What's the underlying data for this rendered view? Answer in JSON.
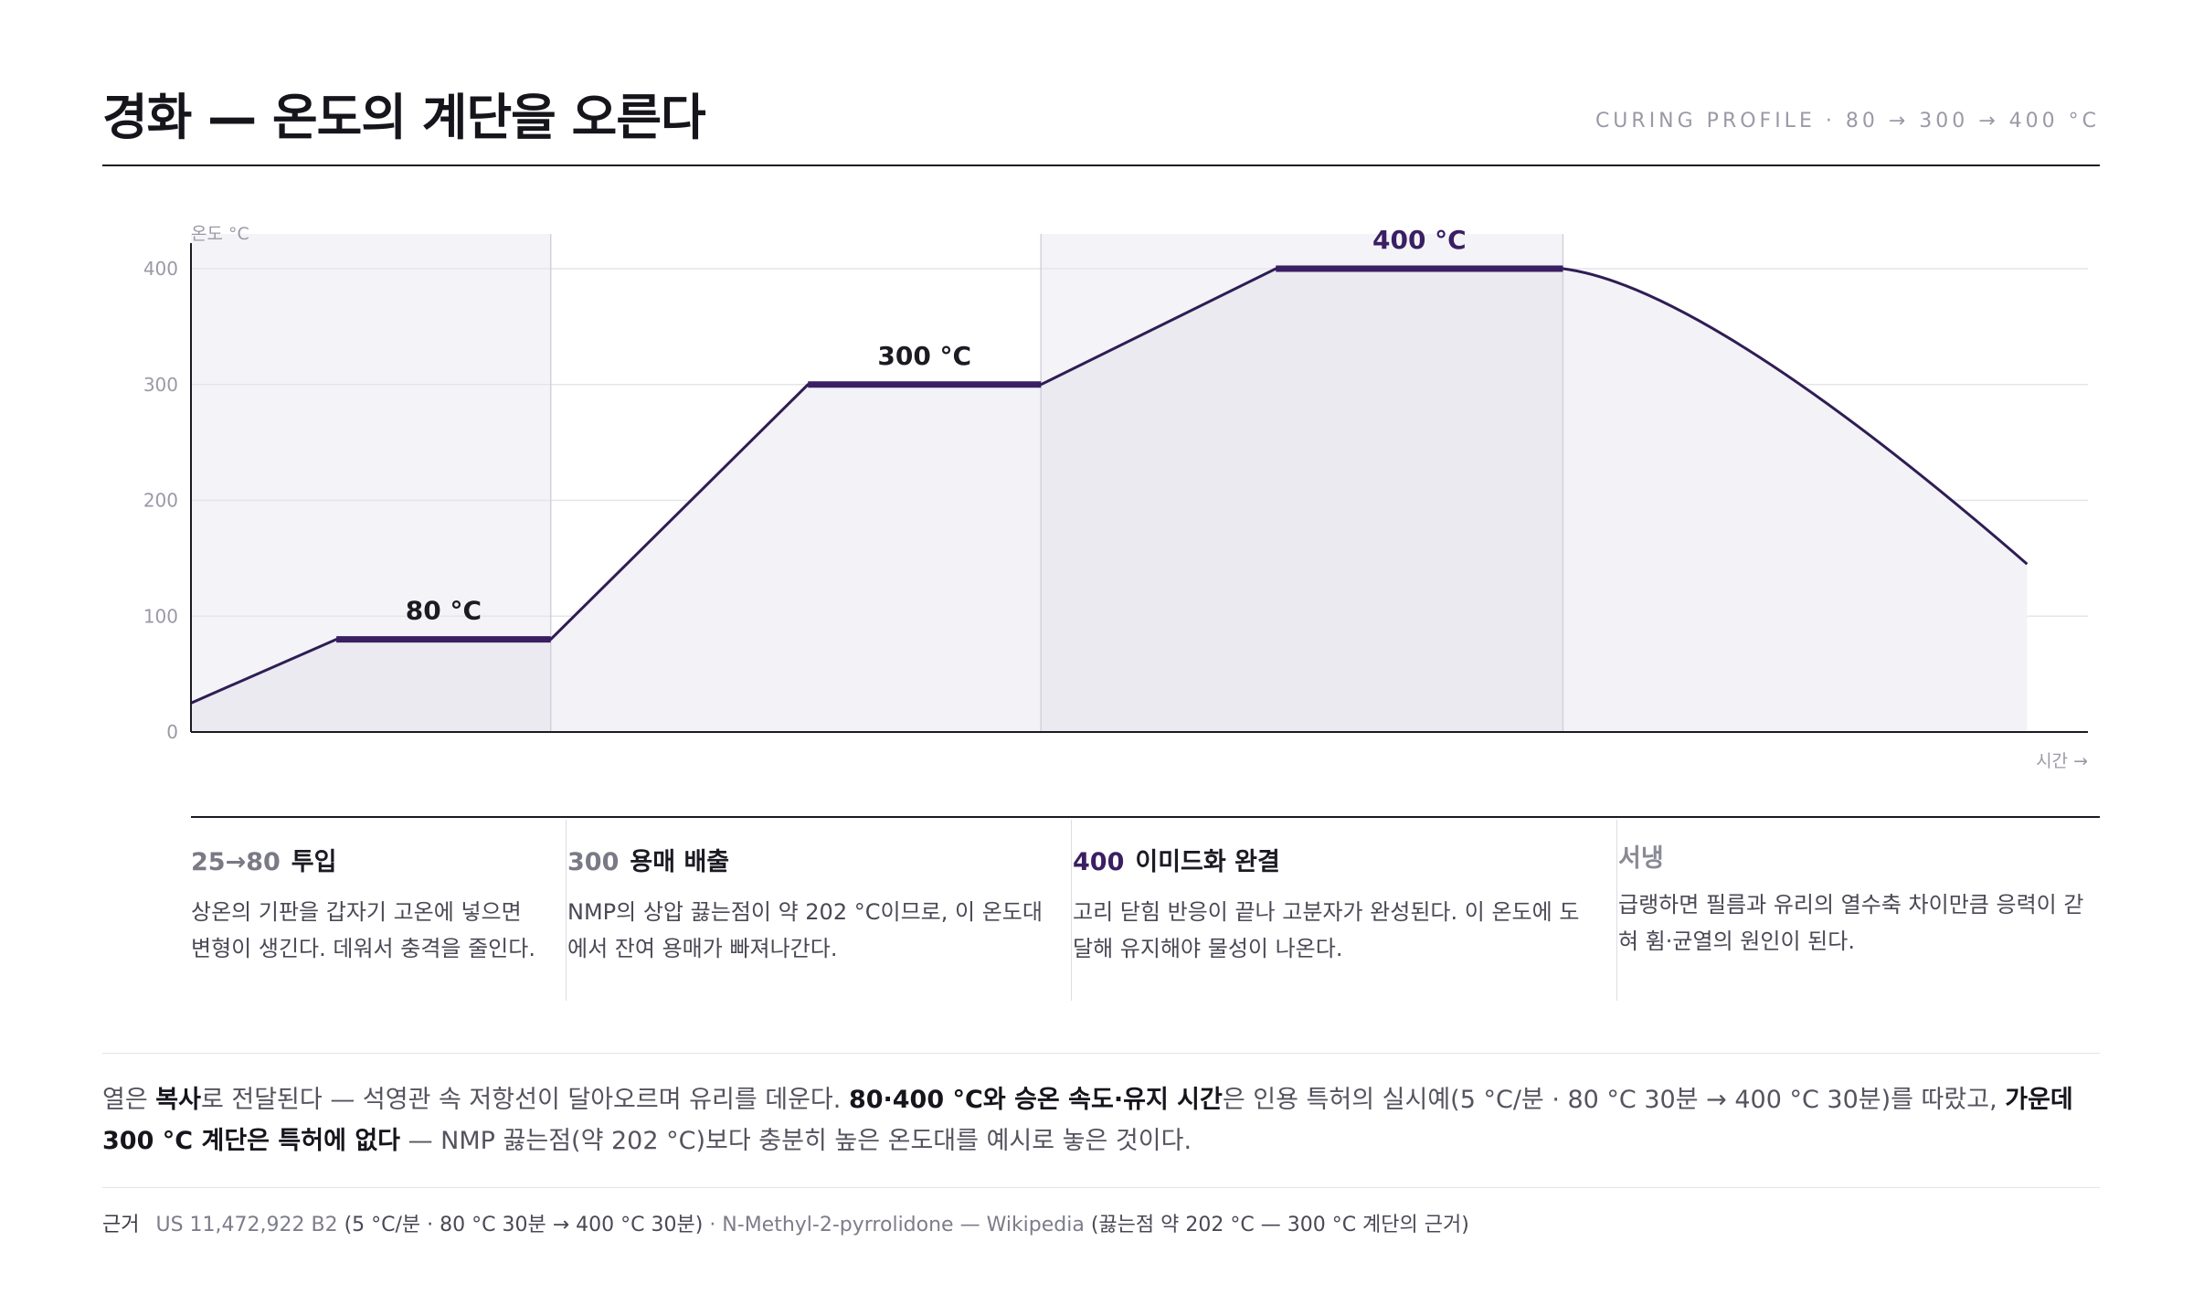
{
  "header": {
    "title": "경화 — 온도의 계단을 오른다",
    "profile": "CURING PROFILE · 80 → 300 → 400 °C"
  },
  "chart_data": {
    "type": "line",
    "ylabel": "온도 °C",
    "xlabel": "시간 →",
    "yticks": [
      "0",
      "100",
      "200",
      "300",
      "400"
    ],
    "ylim": [
      0,
      430
    ],
    "xlim": [
      0,
      100
    ],
    "grid": true,
    "series": [
      {
        "x": [
          0,
          7.8,
          19.3,
          33.1,
          45.6,
          58.2,
          73.6,
          98.5
        ],
        "values": [
          25,
          80,
          80,
          300,
          300,
          400,
          400,
          145
        ]
      }
    ],
    "bands": [
      [
        0,
        19.3
      ],
      [
        45.6,
        73.6
      ]
    ],
    "stage_lines": [
      19.3,
      45.6,
      73.6
    ],
    "holds": [
      {
        "x0": 7.8,
        "x1": 19.3,
        "y": 80,
        "label": "80 °C"
      },
      {
        "x0": 33.1,
        "x1": 45.6,
        "y": 300,
        "label": "300 °C"
      },
      {
        "x0": 58.2,
        "x1": 73.6,
        "y": 400,
        "label": "400 °C"
      }
    ],
    "colors": {
      "line": "#2f1d55",
      "hold": "#3a1f63",
      "band": "#f4f4f8",
      "area": "#eaeaf0",
      "area_light": "#f3f2f7",
      "grid": "#e4e4ea"
    }
  },
  "stages": [
    {
      "num": "25→80",
      "name": "투입",
      "desc": "상온의 기판을 갑자기 고온에 넣으면 변형이 생긴다. 데워서 충격을 줄인다."
    },
    {
      "num": "300",
      "name": "용매 배출",
      "desc": "NMP의 상압 끓는점이 약 202 °C이므로, 이 온도대에서 잔여 용매가 빠져나간다."
    },
    {
      "num": "400",
      "name": "이미드화 완결",
      "desc": "고리 닫힘 반응이 끝나 고분자가 완성된다. 이 온도에 도달해 유지해야 물성이 나온다."
    },
    {
      "num": "",
      "name": "서냉",
      "desc": "급랭하면 필름과 유리의 열수축 차이만큼 응력이 갇혀 휨·균열의 원인이 된다."
    }
  ],
  "note": {
    "p1": "열은 ",
    "b1": "복사",
    "p2": "로 전달된다 — 석영관 속 저항선이 달아오르며 유리를 데운다. ",
    "b2": "80·400 °C와 승온 속도·유지 시간",
    "p3": "은 인용 특허의 실시예(5 °C/분 · 80 °C 30분 → 400 °C 30분)를 따랐고, ",
    "b3": "가운데 300 °C 계단은 특허에 없다",
    "p4": " — NMP 끓는점(약 202 °C)보다 충분히 높은 온도대를 예시로 놓은 것이다."
  },
  "source": {
    "label": "근거",
    "ref1": "US 11,472,922 B2",
    "txt1": " (5 °C/분 · 80 °C 30분 → 400 °C 30분) ",
    "ref2": "· N-Methyl-2-pyrrolidone — Wikipedia",
    "txt2": " (끓는점 약 202 °C — 300 °C 계단의 근거)"
  }
}
